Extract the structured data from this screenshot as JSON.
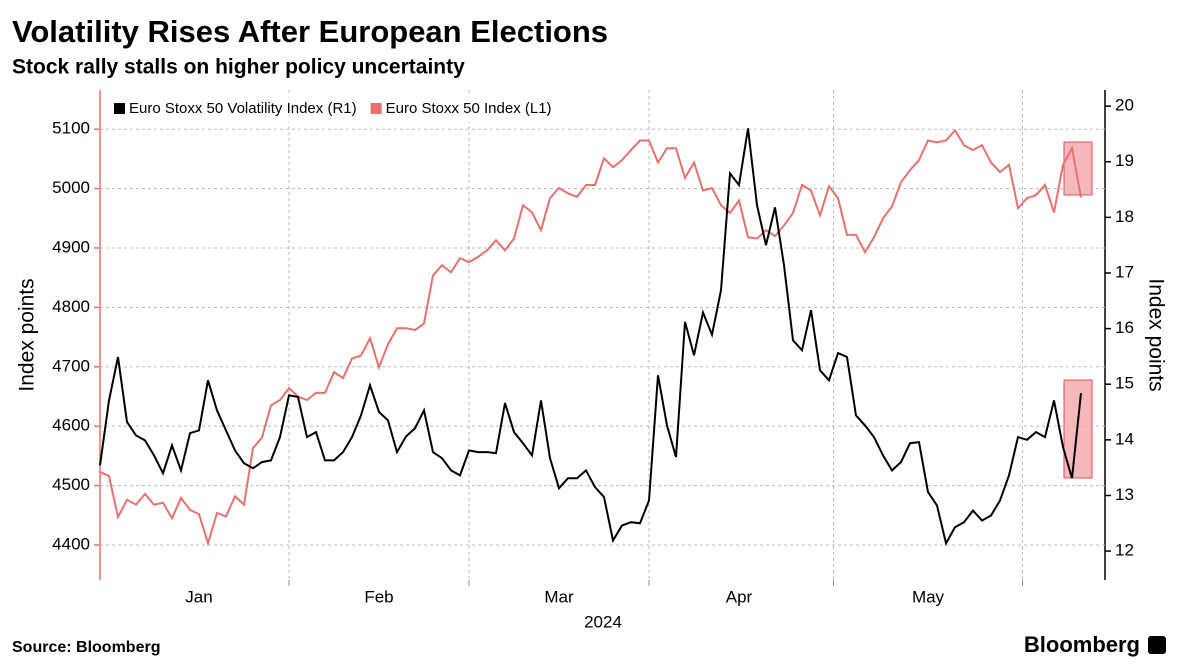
{
  "chart_data": {
    "type": "line",
    "title": "Volatility Rises After European Elections",
    "subtitle": "Stock rally stalls on higher policy uncertainty",
    "ylabel": "Index points",
    "y2label": "Index points",
    "xlabel": "2024",
    "source": "Source: Bloomberg",
    "brand": "Bloomberg",
    "categories": [
      null,
      null,
      null,
      null,
      null,
      null,
      null,
      null,
      null,
      null,
      null,
      "Jan",
      null,
      null,
      null,
      null,
      null,
      null,
      null,
      null,
      null,
      null,
      null,
      null,
      null,
      null,
      null,
      null,
      null,
      null,
      null,
      "Feb",
      null,
      null,
      null,
      null,
      null,
      null,
      null,
      null,
      null,
      null,
      null,
      null,
      null,
      null,
      null,
      null,
      null,
      null,
      null,
      "Mar",
      null,
      null,
      null,
      null,
      null,
      null,
      null,
      null,
      null,
      null,
      null,
      null,
      null,
      null,
      null,
      null,
      null,
      null,
      null,
      "Apr",
      null,
      null,
      null,
      null,
      null,
      null,
      null,
      null,
      null,
      null,
      null,
      null,
      null,
      null,
      null,
      null,
      null,
      null,
      null,
      null,
      "May",
      null,
      null,
      null,
      null,
      null,
      null,
      null,
      null,
      null,
      null,
      null,
      null,
      null,
      null,
      null,
      null,
      null
    ],
    "series": [
      {
        "name": "Euro Stoxx 50 Volatility Index (R1)",
        "color": "#000000",
        "axis": "y2",
        "values": [
          13.54,
          14.71,
          15.49,
          14.32,
          14.08,
          13.99,
          13.72,
          13.4,
          13.9,
          13.45,
          14.12,
          14.17,
          15.07,
          14.53,
          14.17,
          13.81,
          13.58,
          13.49,
          13.6,
          13.63,
          14.05,
          14.8,
          14.77,
          14.05,
          14.14,
          13.63,
          13.63,
          13.78,
          14.05,
          14.44,
          14.98,
          14.5,
          14.35,
          13.78,
          14.06,
          14.21,
          14.53,
          13.78,
          13.67,
          13.45,
          13.36,
          13.81,
          13.78,
          13.78,
          13.76,
          14.66,
          14.14,
          13.94,
          13.72,
          14.71,
          13.67,
          13.13,
          13.31,
          13.31,
          13.45,
          13.15,
          12.97,
          12.19,
          12.46,
          12.52,
          12.5,
          12.91,
          15.16,
          14.26,
          13.69,
          16.12,
          15.52,
          16.29,
          15.89,
          16.69,
          18.79,
          18.58,
          19.6,
          18.22,
          17.5,
          18.18,
          17.14,
          15.79,
          15.61,
          16.33,
          15.25,
          15.07,
          15.56,
          15.49,
          14.44,
          14.26,
          14.05,
          13.72,
          13.45,
          13.6,
          13.94,
          13.96,
          13.06,
          12.82,
          12.14,
          12.43,
          12.52,
          12.73,
          12.55,
          12.64,
          12.91,
          13.36,
          14.05,
          14.0,
          14.14,
          14.05,
          14.71,
          13.87,
          13.31,
          14.84
        ]
      },
      {
        "name": "Euro Stoxx 50 Index (L1)",
        "color": "#e8716f",
        "axis": "y",
        "values": [
          4523,
          4516,
          4447,
          4476,
          4468,
          4486,
          4468,
          4471,
          4445,
          4479,
          4459,
          4452,
          4403,
          4454,
          4448,
          4482,
          4468,
          4563,
          4581,
          4635,
          4644,
          4664,
          4650,
          4644,
          4656,
          4656,
          4691,
          4681,
          4714,
          4719,
          4748,
          4699,
          4738,
          4765,
          4765,
          4762,
          4773,
          4854,
          4871,
          4859,
          4883,
          4876,
          4885,
          4896,
          4913,
          4896,
          4916,
          4972,
          4960,
          4930,
          4984,
          5001,
          4992,
          4986,
          5006,
          5006,
          5051,
          5036,
          5048,
          5065,
          5081,
          5081,
          5044,
          5068,
          5068,
          5018,
          5044,
          4997,
          5001,
          4972,
          4959,
          4980,
          4918,
          4916,
          4930,
          4920,
          4938,
          4959,
          5006,
          4997,
          4955,
          5004,
          4984,
          4922,
          4922,
          4893,
          4918,
          4950,
          4970,
          5011,
          5031,
          5048,
          5081,
          5078,
          5081,
          5098,
          5073,
          5065,
          5073,
          5044,
          5028,
          5040,
          4967,
          4984,
          4989,
          5006,
          4960,
          5040,
          5068,
          4985
        ]
      }
    ],
    "ylim": [
      4341,
      5166
    ],
    "yticks": [
      4400,
      4500,
      4600,
      4700,
      4800,
      4900,
      5000,
      5100
    ],
    "y2lim": [
      11.48,
      20.29
    ],
    "y2ticks": [
      12,
      13,
      14,
      15,
      16,
      17,
      18,
      19,
      20
    ],
    "grid": true,
    "legend": "top-left"
  }
}
